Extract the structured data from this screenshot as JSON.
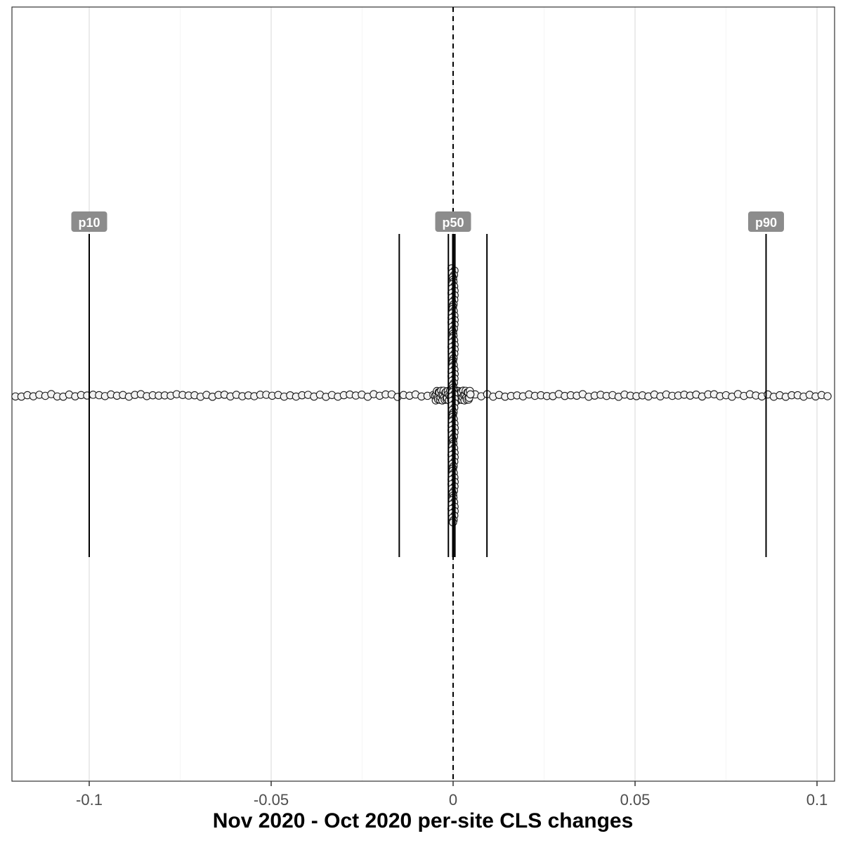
{
  "chart_data": {
    "type": "scatter",
    "title": "",
    "xlabel": "Nov 2020 - Oct 2020 per-site CLS changes",
    "ylabel": "",
    "xlim": [
      -0.121,
      0.104
    ],
    "ticks": [
      {
        "value": -0.1,
        "label": "-0.1"
      },
      {
        "value": -0.05,
        "label": "-0.05"
      },
      {
        "value": 0,
        "label": "0"
      },
      {
        "value": 0.05,
        "label": "0.05"
      },
      {
        "value": 0.1,
        "label": "0.1"
      }
    ],
    "grid": true,
    "zero_line": {
      "value": 0,
      "style": "dashed"
    },
    "percentile_lines": [
      {
        "name": "p10",
        "value": -0.1,
        "label": "p10"
      },
      {
        "name": "p20",
        "value": -0.0148,
        "label": ""
      },
      {
        "name": "p30",
        "value": -0.0013,
        "label": ""
      },
      {
        "name": "p40",
        "value": -0.0001,
        "label": ""
      },
      {
        "name": "p50",
        "value": 0.0,
        "label": "p50"
      },
      {
        "name": "p60",
        "value": 0.0001,
        "label": ""
      },
      {
        "name": "p70",
        "value": 0.0005,
        "label": ""
      },
      {
        "name": "p80",
        "value": 0.0093,
        "label": ""
      },
      {
        "name": "p90",
        "value": 0.086,
        "label": "p90"
      }
    ],
    "series": [
      {
        "values_note_free": true
      }
    ]
  }
}
